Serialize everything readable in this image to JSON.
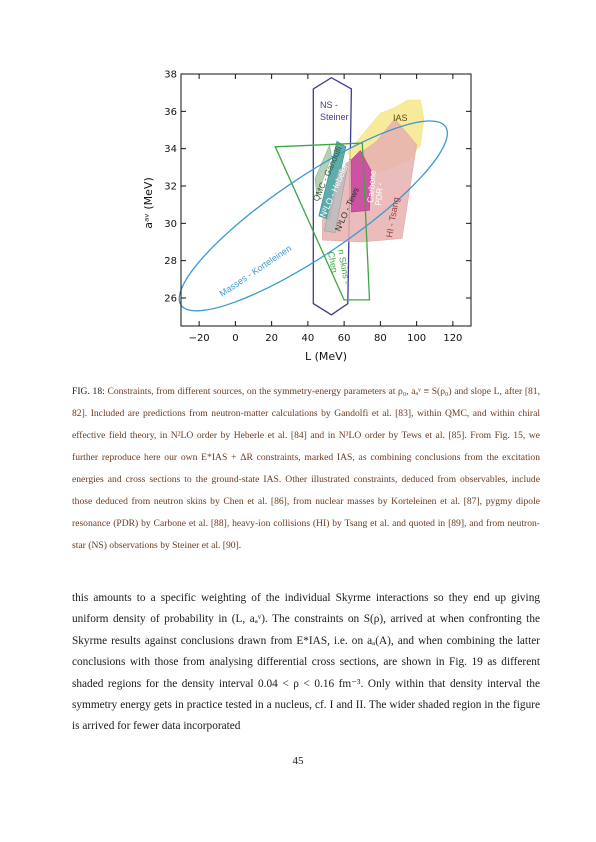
{
  "chart_data": {
    "type": "area",
    "xlabel": "L (MeV)",
    "ylabel": "aᵃᵛ (MeV)",
    "xlim": [
      -30,
      130
    ],
    "ylim": [
      24.5,
      38
    ],
    "xticks": [
      -20,
      0,
      20,
      40,
      60,
      80,
      100,
      120
    ],
    "yticks": [
      26,
      28,
      30,
      32,
      34,
      36,
      38
    ],
    "xtick_labels": [
      "−20",
      "0",
      "20",
      "40",
      "60",
      "80",
      "100",
      "120"
    ],
    "ytick_labels": [
      "26",
      "28",
      "30",
      "32",
      "34",
      "36",
      "38"
    ],
    "regions": [
      {
        "label": "NS - Steiner",
        "color": "#3d3d8f",
        "fill": "none",
        "polygon": [
          [
            43,
            37.2
          ],
          [
            53,
            37.8
          ],
          [
            64,
            37.2
          ],
          [
            62,
            25.7
          ],
          [
            53,
            25.1
          ],
          [
            43,
            25.7
          ]
        ]
      },
      {
        "label": "IAS",
        "color": "#f2e27a",
        "fill": "#f6e68a",
        "polygon": [
          [
            62,
            33.8
          ],
          [
            80,
            35.9
          ],
          [
            88,
            36.2
          ],
          [
            95,
            36.6
          ],
          [
            102,
            36.6
          ],
          [
            104,
            35.6
          ],
          [
            102,
            34.2
          ],
          [
            96,
            33.4
          ],
          [
            86,
            33.0
          ],
          [
            68,
            32.4
          ]
        ]
      },
      {
        "label": "HI - Tsang",
        "color": "#e3a8a8",
        "fill": "#e6b0b0",
        "polygon": [
          [
            48,
            30.2
          ],
          [
            61,
            33.2
          ],
          [
            78,
            34.4
          ],
          [
            88,
            35.6
          ],
          [
            100,
            34.2
          ],
          [
            92,
            29.2
          ],
          [
            70,
            29.0
          ],
          [
            48,
            29.1
          ]
        ]
      },
      {
        "label": "QMC - Gandolfi",
        "color": "#8fb58f",
        "fill": "#a8c8a8",
        "polygon": [
          [
            44,
            32.4
          ],
          [
            52,
            34.2
          ],
          [
            53,
            33.6
          ],
          [
            45,
            31.4
          ]
        ]
      },
      {
        "label": "N²LO - Hebeler",
        "color": "#2f8f8f",
        "fill": "#3f9f9f",
        "polygon": [
          [
            46,
            30.4
          ],
          [
            56,
            34.4
          ],
          [
            61,
            34.1
          ],
          [
            52,
            30.2
          ]
        ]
      },
      {
        "label": "N³LO - Tews",
        "color": "#9e9e9e",
        "fill": "#bdbdbd",
        "polygon": [
          [
            49,
            29.6
          ],
          [
            57,
            32.9
          ],
          [
            62,
            33.1
          ],
          [
            55,
            29.5
          ]
        ]
      },
      {
        "label": "PDR - Carbone",
        "color": "#c0359a",
        "fill": "#c8409f",
        "polygon": [
          [
            64,
            30.6
          ],
          [
            64,
            33.4
          ],
          [
            69,
            33.9
          ],
          [
            75,
            32.8
          ],
          [
            74,
            30.7
          ]
        ]
      },
      {
        "label": "n Skins - Chen",
        "color": "#3fa63f",
        "fill": "none",
        "polygon": [
          [
            22,
            34.1
          ],
          [
            70,
            34.3
          ],
          [
            74,
            25.9
          ],
          [
            60,
            25.9
          ]
        ]
      },
      {
        "label": "Masses - Korteleinen",
        "color": "#3a9ad2",
        "fill": "none",
        "ellipse": {
          "cx": 43,
          "cy": 30.4,
          "rx": 88,
          "ry": 2.1,
          "angle_deg": 34
        }
      }
    ]
  },
  "caption": {
    "lead": "FIG. 18:",
    "text": "Constraints, from different sources, on the symmetry-energy parameters at ρ₀, aₐᵛ ≡ S(ρ₀) and slope L, after [81, 82]. Included are predictions from neutron-matter calculations by Gandolfi et al. [83], within QMC, and within chiral effective field theory, in N²LO order by Heberle et al. [84] and in N³LO order by Tews et al. [85]. From Fig. 15, we further reproduce here our own E*IAS + ΔR constraints, marked IAS, as combining conclusions from the excitation energies and cross sections to the ground-state IAS. Other illustrated constraints, deduced from observables, include those deduced from neutron skins by Chen et al. [86], from nuclear masses by Korteleinen et al. [87], pygmy dipole resonance (PDR) by Carbone et al. [88], heavy-ion collisions (HI) by Tsang et al. and quoted in [89], and from neutron-star (NS) observations by Steiner et al. [90]."
  },
  "body": {
    "paragraph": "this amounts to a specific weighting of the individual Skyrme interactions so they end up giving uniform density of probability in (L, aₐᵛ). The constraints on S(ρ), arrived at when confronting the Skyrme results against conclusions drawn from E*IAS, i.e. on aₐ(A), and when combining the latter conclusions with those from analysing differential cross sections, are shown in Fig. 19 as different shaded regions for the density interval 0.04 < ρ < 0.16 fm⁻³. Only within that density interval the symmetry energy gets in practice tested in a nucleus, cf. I and II. The wider shaded region in the figure is arrived for fewer data incorporated"
  },
  "page_number": "45"
}
